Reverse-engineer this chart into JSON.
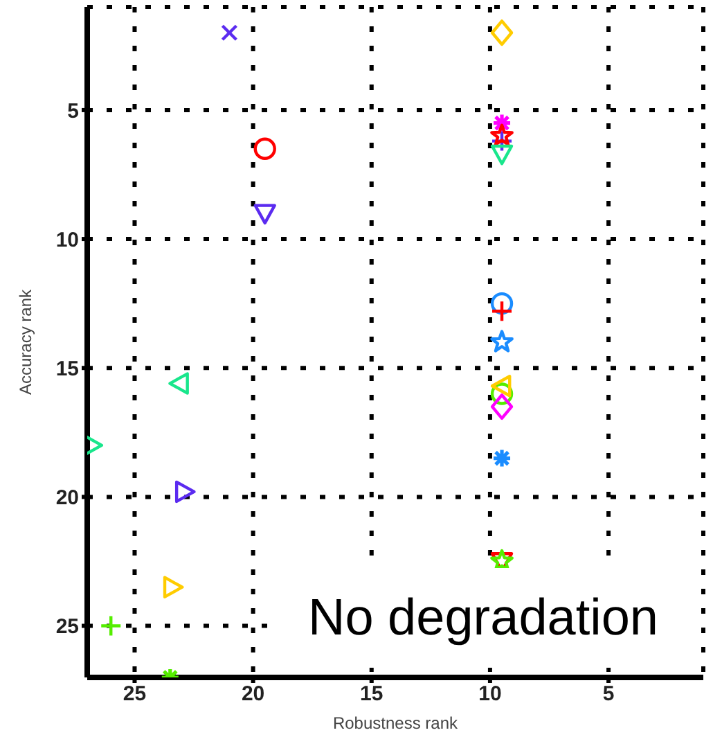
{
  "chart_data": {
    "type": "scatter",
    "xlabel": "Robustness rank",
    "ylabel": "Accuracy rank",
    "xlim": [
      27,
      1
    ],
    "ylim": [
      27,
      1
    ],
    "xticks": [
      25,
      20,
      15,
      10,
      5
    ],
    "yticks": [
      5,
      10,
      15,
      20,
      25
    ],
    "grid": true,
    "legend": false,
    "annotations": [
      "No degradation"
    ],
    "series": [
      {
        "color": "#5b2bf0",
        "marker": "x",
        "x": [
          21
        ],
        "values": [
          2
        ]
      },
      {
        "color": "#ffcc00",
        "marker": "diamond",
        "x": [
          9.5
        ],
        "values": [
          2
        ]
      },
      {
        "color": "#ff00ff",
        "marker": "cross",
        "x": [
          9.5
        ],
        "values": [
          5.5
        ]
      },
      {
        "color": "#5b2bf0",
        "marker": "plus",
        "x": [
          9.5
        ],
        "values": [
          6.2
        ]
      },
      {
        "color": "#ff0000",
        "marker": "star",
        "x": [
          9.5
        ],
        "values": [
          6
        ]
      },
      {
        "color": "#19e68c",
        "marker": "triangle-down",
        "x": [
          9.5
        ],
        "values": [
          6.7
        ]
      },
      {
        "color": "#ff0000",
        "marker": "circle",
        "x": [
          19.5
        ],
        "values": [
          6.5
        ]
      },
      {
        "color": "#5b2bf0",
        "marker": "triangle-down",
        "x": [
          19.5
        ],
        "values": [
          9
        ]
      },
      {
        "color": "#1a8cff",
        "marker": "circle",
        "x": [
          9.5
        ],
        "values": [
          12.5
        ]
      },
      {
        "color": "#ff0000",
        "marker": "plus",
        "x": [
          9.5
        ],
        "values": [
          12.8
        ]
      },
      {
        "color": "#1a8cff",
        "marker": "star",
        "x": [
          9.5
        ],
        "values": [
          14
        ]
      },
      {
        "color": "#55ee00",
        "marker": "circle",
        "x": [
          9.5
        ],
        "values": [
          16
        ]
      },
      {
        "color": "#ffcc00",
        "marker": "triangle-left",
        "x": [
          9.5
        ],
        "values": [
          15.7
        ]
      },
      {
        "color": "#ff00ff",
        "marker": "diamond",
        "x": [
          9.5
        ],
        "values": [
          16.5
        ]
      },
      {
        "color": "#1a8cff",
        "marker": "cross",
        "x": [
          9.5
        ],
        "values": [
          18.5
        ]
      },
      {
        "color": "#ff0000",
        "marker": "triangle-down",
        "x": [
          9.5
        ],
        "values": [
          22.5
        ]
      },
      {
        "color": "#55ee00",
        "marker": "star",
        "x": [
          9.5
        ],
        "values": [
          22.5
        ]
      },
      {
        "color": "#19e68c",
        "marker": "triangle-left",
        "x": [
          23.1
        ],
        "values": [
          15.6
        ]
      },
      {
        "color": "#19e68c",
        "marker": "triangle-right",
        "x": [
          26.8
        ],
        "values": [
          18
        ]
      },
      {
        "color": "#5b2bf0",
        "marker": "triangle-right",
        "x": [
          22.9
        ],
        "values": [
          19.8
        ]
      },
      {
        "color": "#ffcc00",
        "marker": "triangle-right",
        "x": [
          23.4
        ],
        "values": [
          23.5
        ]
      },
      {
        "color": "#55ee00",
        "marker": "plus",
        "x": [
          26
        ],
        "values": [
          25
        ]
      },
      {
        "color": "#55ee00",
        "marker": "cross",
        "x": [
          23.5
        ],
        "values": [
          27
        ]
      }
    ]
  }
}
